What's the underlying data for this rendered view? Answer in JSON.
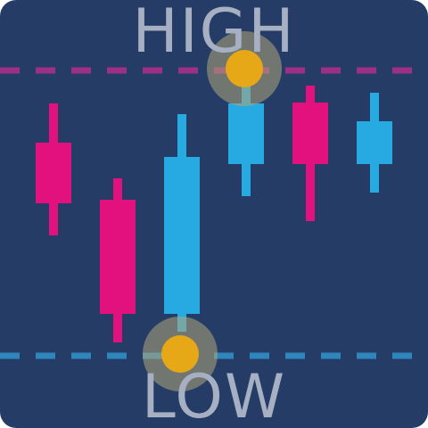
{
  "labels": {
    "high": "HIGH",
    "low": "LOW"
  },
  "colors": {
    "background": "#253d66",
    "bullish": "#27a9e1",
    "bearish": "#e3117d",
    "high_line": "#9c2f86",
    "low_line": "#2f86bd",
    "marker": "#e6a817",
    "marker_halo": "#8c8a5c",
    "label_text": "#a7b0c2"
  },
  "icon": "candlestick-high-low-icon"
}
